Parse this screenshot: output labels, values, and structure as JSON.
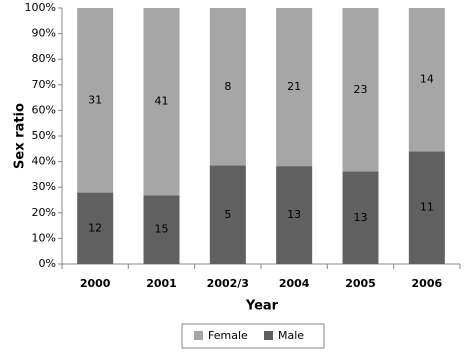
{
  "chart_data": {
    "type": "bar",
    "stacked": true,
    "normalized": true,
    "x_label": "Year",
    "y_label": "Sex ratio",
    "categories": [
      "2000",
      "2001",
      "2002/3",
      "2004",
      "2005",
      "2006"
    ],
    "series": [
      {
        "name": "Male",
        "color": "#606060",
        "values": [
          12,
          15,
          5,
          13,
          13,
          11
        ]
      },
      {
        "name": "Female",
        "color": "#a6a6a6",
        "values": [
          31,
          41,
          8,
          21,
          23,
          14
        ]
      }
    ],
    "ylim": [
      0,
      100
    ],
    "yticks": [
      {
        "value": 0,
        "label": "0%"
      },
      {
        "value": 10,
        "label": "10%"
      },
      {
        "value": 20,
        "label": "20%"
      },
      {
        "value": 30,
        "label": "30%"
      },
      {
        "value": 40,
        "label": "40%"
      },
      {
        "value": 50,
        "label": "50%"
      },
      {
        "value": 60,
        "label": "60%"
      },
      {
        "value": 70,
        "label": "70%"
      },
      {
        "value": 80,
        "label": "80%"
      },
      {
        "value": 90,
        "label": "90%"
      },
      {
        "value": 100,
        "label": "100%"
      }
    ],
    "legend": "bottom"
  }
}
